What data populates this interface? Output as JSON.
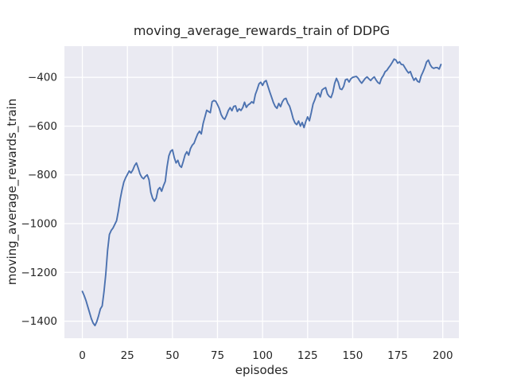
{
  "colors": {
    "figure_background": "#FFFFFF",
    "axes_background": "#EAEAF2",
    "grid": "#FFFFFF",
    "line": "#4C72B0",
    "text": "#262626"
  },
  "chart_data": {
    "type": "line",
    "title": "moving_average_rewards_train of DDPG",
    "xlabel": "episodes",
    "ylabel": "moving_average_rewards_train",
    "legend": false,
    "grid": true,
    "grid_style": "seaborn-darkgrid (white gridlines on light gray-lavender axes background)",
    "xlim": [
      -9.95,
      208.95
    ],
    "ylim": [
      -1470,
      -272
    ],
    "x_ticks": [
      0,
      25,
      50,
      75,
      100,
      125,
      150,
      175,
      200
    ],
    "y_ticks": [
      -1400,
      -1200,
      -1000,
      -800,
      -600,
      -400
    ],
    "x_tick_labels": [
      "0",
      "25",
      "50",
      "75",
      "100",
      "125",
      "150",
      "175",
      "200"
    ],
    "y_tick_labels": [
      "−1400",
      "−1200",
      "−1000",
      "−800",
      "−600",
      "−400"
    ],
    "series": [
      {
        "name": "moving_average_rewards_train",
        "color": "#4C72B0",
        "x": [
          0,
          1,
          2,
          3,
          4,
          5,
          6,
          7,
          8,
          9,
          10,
          11,
          12,
          13,
          14,
          15,
          16,
          17,
          18,
          19,
          20,
          21,
          22,
          23,
          24,
          25,
          26,
          27,
          28,
          29,
          30,
          31,
          32,
          33,
          34,
          35,
          36,
          37,
          38,
          39,
          40,
          41,
          42,
          43,
          44,
          45,
          46,
          47,
          48,
          49,
          50,
          51,
          52,
          53,
          54,
          55,
          56,
          57,
          58,
          59,
          60,
          61,
          62,
          63,
          64,
          65,
          66,
          67,
          68,
          69,
          70,
          71,
          72,
          73,
          74,
          75,
          76,
          77,
          78,
          79,
          80,
          81,
          82,
          83,
          84,
          85,
          86,
          87,
          88,
          89,
          90,
          91,
          92,
          93,
          94,
          95,
          96,
          97,
          98,
          99,
          100,
          101,
          102,
          103,
          104,
          105,
          106,
          107,
          108,
          109,
          110,
          111,
          112,
          113,
          114,
          115,
          116,
          117,
          118,
          119,
          120,
          121,
          122,
          123,
          124,
          125,
          126,
          127,
          128,
          129,
          130,
          131,
          132,
          133,
          134,
          135,
          136,
          137,
          138,
          139,
          140,
          141,
          142,
          143,
          144,
          145,
          146,
          147,
          148,
          149,
          150,
          151,
          152,
          153,
          154,
          155,
          156,
          157,
          158,
          159,
          160,
          161,
          162,
          163,
          164,
          165,
          166,
          167,
          168,
          169,
          170,
          171,
          172,
          173,
          174,
          175,
          176,
          177,
          178,
          179,
          180,
          181,
          182,
          183,
          184,
          185,
          186,
          187,
          188,
          189,
          190,
          191,
          192,
          193,
          194,
          195,
          196,
          197,
          198,
          199
        ],
        "y": [
          -1278,
          -1295,
          -1315,
          -1340,
          -1365,
          -1390,
          -1408,
          -1418,
          -1402,
          -1378,
          -1350,
          -1338,
          -1280,
          -1207,
          -1110,
          -1045,
          -1028,
          -1018,
          -1003,
          -988,
          -948,
          -900,
          -862,
          -830,
          -812,
          -798,
          -784,
          -792,
          -780,
          -762,
          -751,
          -772,
          -796,
          -810,
          -816,
          -806,
          -800,
          -820,
          -872,
          -896,
          -908,
          -895,
          -860,
          -852,
          -867,
          -845,
          -827,
          -767,
          -722,
          -703,
          -697,
          -729,
          -751,
          -740,
          -762,
          -769,
          -745,
          -718,
          -705,
          -719,
          -692,
          -678,
          -670,
          -650,
          -632,
          -621,
          -632,
          -590,
          -563,
          -535,
          -540,
          -545,
          -500,
          -495,
          -498,
          -512,
          -528,
          -552,
          -566,
          -572,
          -556,
          -536,
          -524,
          -537,
          -519,
          -517,
          -540,
          -529,
          -536,
          -524,
          -502,
          -523,
          -513,
          -508,
          -500,
          -506,
          -470,
          -450,
          -427,
          -420,
          -433,
          -418,
          -413,
          -437,
          -460,
          -481,
          -503,
          -519,
          -527,
          -507,
          -520,
          -500,
          -489,
          -486,
          -506,
          -518,
          -542,
          -570,
          -587,
          -594,
          -579,
          -600,
          -585,
          -606,
          -581,
          -562,
          -578,
          -546,
          -510,
          -492,
          -470,
          -464,
          -480,
          -452,
          -446,
          -442,
          -468,
          -478,
          -483,
          -462,
          -425,
          -404,
          -420,
          -447,
          -450,
          -437,
          -410,
          -407,
          -419,
          -406,
          -400,
          -398,
          -396,
          -403,
          -415,
          -424,
          -414,
          -404,
          -398,
          -406,
          -413,
          -404,
          -398,
          -411,
          -421,
          -426,
          -404,
          -393,
          -377,
          -371,
          -360,
          -350,
          -338,
          -325,
          -329,
          -342,
          -336,
          -347,
          -348,
          -360,
          -372,
          -382,
          -376,
          -396,
          -412,
          -403,
          -416,
          -420,
          -394,
          -378,
          -360,
          -337,
          -329,
          -348,
          -359,
          -363,
          -360,
          -360,
          -366,
          -347
        ]
      }
    ]
  }
}
